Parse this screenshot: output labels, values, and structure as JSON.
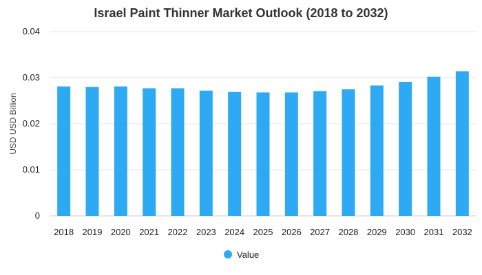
{
  "chart_data": {
    "type": "bar",
    "title": "Israel Paint Thinner Market Outlook (2018 to 2032)",
    "xlabel": "",
    "ylabel": "USD USD Billion",
    "categories": [
      "2018",
      "2019",
      "2020",
      "2021",
      "2022",
      "2023",
      "2024",
      "2025",
      "2026",
      "2027",
      "2028",
      "2029",
      "2030",
      "2031",
      "2032"
    ],
    "series": [
      {
        "name": "Value",
        "color": "#2EAAF5",
        "values": [
          0.0281,
          0.028,
          0.0281,
          0.0277,
          0.0277,
          0.0272,
          0.0269,
          0.0268,
          0.0268,
          0.0271,
          0.0275,
          0.0283,
          0.0291,
          0.0302,
          0.0314
        ]
      }
    ],
    "ylim": [
      0,
      0.04
    ],
    "yticks": [
      "0",
      "0.01",
      "0.02",
      "0.03",
      "0.04"
    ],
    "grid": true,
    "legend_position": "bottom"
  }
}
